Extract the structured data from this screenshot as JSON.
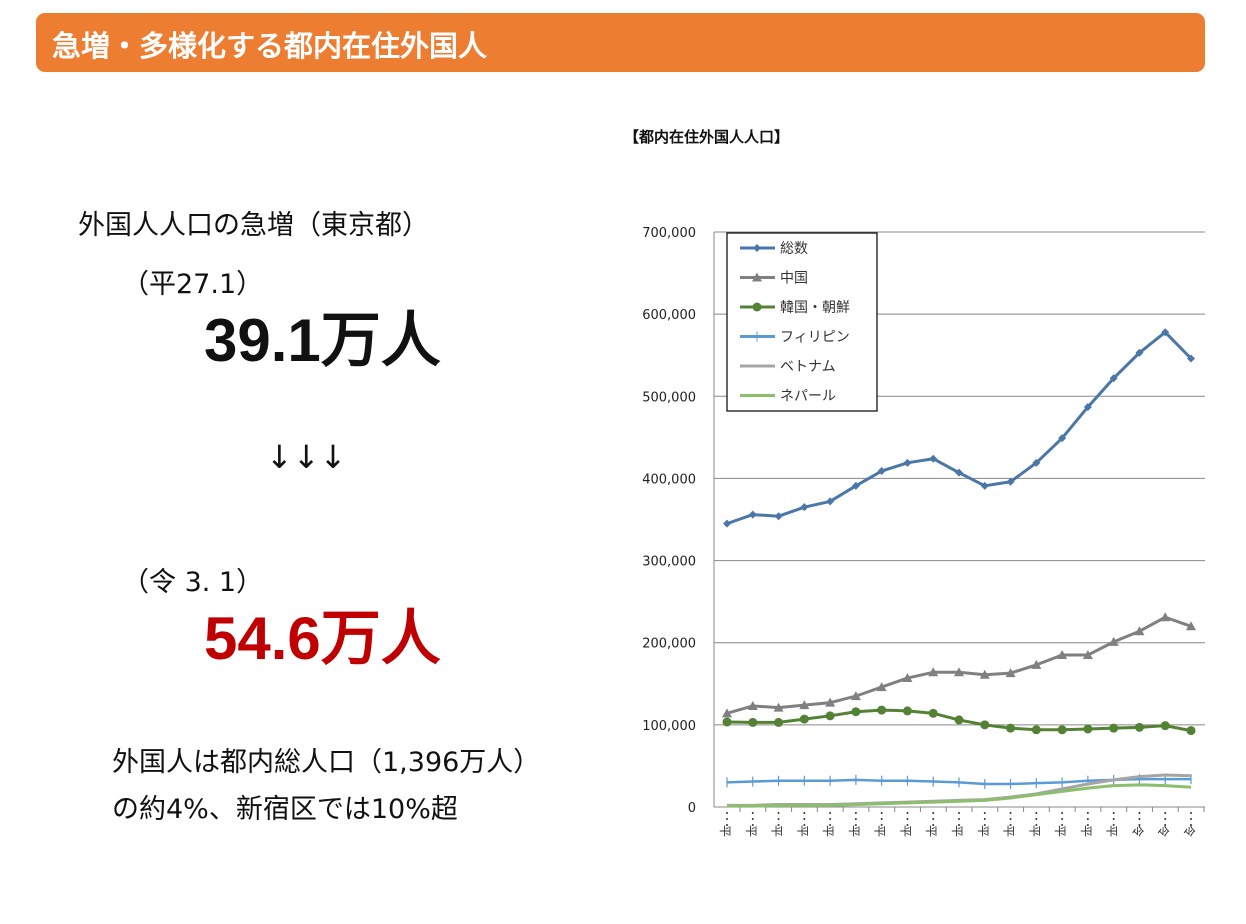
{
  "header": {
    "title": "急増・多様化する都内在住外国人"
  },
  "left": {
    "subtitle": "外国人人口の急増（東京都）",
    "date_before": "（平27.1）",
    "value_before": "39.1万人",
    "arrows": "↓↓↓",
    "date_after": "（令 3. 1）",
    "value_after": "54.6万人",
    "note_line1": "外国人は都内総人口（1,396万人）",
    "note_line2": "の約4%、新宿区では10%超"
  },
  "colors": {
    "header": "#ED7D31",
    "after_value": "#C00000"
  },
  "chart_data": {
    "type": "line",
    "title": "【都内在住外国人人口】",
    "ylim": [
      0,
      700000
    ],
    "yticks": [
      "0",
      "100,000",
      "200,000",
      "300,000",
      "400,000",
      "500,000",
      "600,000",
      "700,000"
    ],
    "categories": [
      "平",
      "平",
      "平",
      "平",
      "平",
      "平",
      "平",
      "平",
      "平",
      "平",
      "平",
      "平",
      "平",
      "平",
      "平",
      "平",
      "令",
      "令",
      "令"
    ],
    "legend_position": "top-left",
    "series": [
      {
        "name": "総数",
        "color": "#4A76A8",
        "marker": "diamond",
        "values": [
          345000,
          356000,
          354000,
          365000,
          372000,
          391000,
          409000,
          419000,
          424000,
          407000,
          391000,
          396000,
          419000,
          449000,
          487000,
          522000,
          553000,
          578000,
          546000
        ]
      },
      {
        "name": "中国",
        "color": "#808080",
        "marker": "triangle",
        "values": [
          114000,
          123000,
          121000,
          124000,
          127000,
          135000,
          146000,
          157000,
          164000,
          164000,
          161000,
          163000,
          173000,
          185000,
          185000,
          201000,
          214000,
          231000,
          220000
        ]
      },
      {
        "name": "韓国・朝鮮",
        "color": "#548235",
        "marker": "circle",
        "values": [
          103500,
          103000,
          103000,
          107000,
          111000,
          116000,
          118000,
          117000,
          114000,
          106000,
          100000,
          96000,
          94000,
          94000,
          95000,
          96000,
          97000,
          99000,
          93000
        ]
      },
      {
        "name": "フィリピン",
        "color": "#5B9BD5",
        "marker": "plus",
        "values": [
          30000,
          31000,
          32000,
          32000,
          32000,
          33000,
          32000,
          32000,
          31000,
          30000,
          28000,
          28000,
          29000,
          30000,
          32000,
          33000,
          34000,
          34000,
          34000
        ]
      },
      {
        "name": "ベトナム",
        "color": "#A5A5A5",
        "marker": "none",
        "values": [
          2000,
          2000,
          3000,
          3000,
          3000,
          4000,
          5000,
          6000,
          7000,
          8000,
          9000,
          12000,
          16000,
          22000,
          28000,
          33000,
          37000,
          39000,
          38000
        ]
      },
      {
        "name": "ネパール",
        "color": "#8DBE6C",
        "marker": "none",
        "values": [
          1000,
          1000,
          2000,
          2000,
          2000,
          3000,
          4000,
          5000,
          6000,
          7000,
          8000,
          11000,
          15000,
          19000,
          23000,
          26000,
          27000,
          26000,
          24000
        ]
      }
    ]
  }
}
